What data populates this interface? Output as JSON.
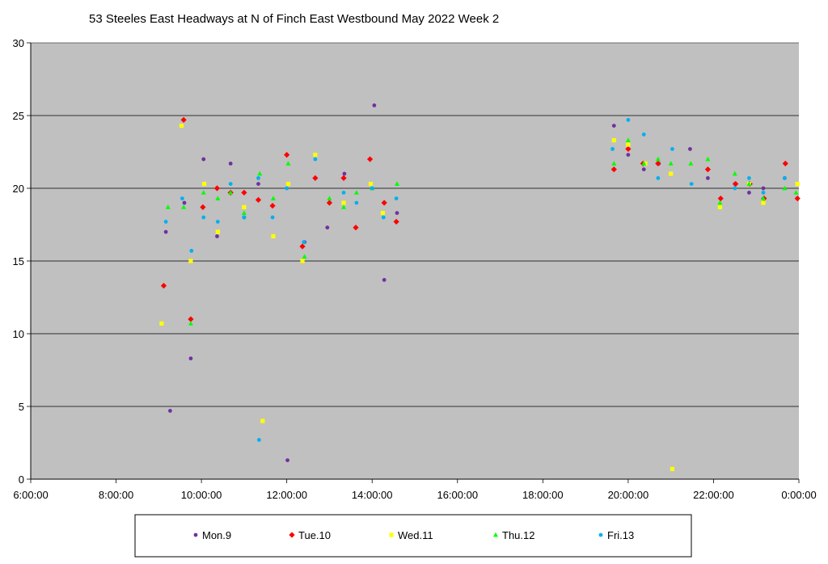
{
  "chart_data": {
    "type": "scatter",
    "title": "53 Steeles East Headways at N of Finch East Westbound May 2022  Week 2",
    "xlabel": "",
    "ylabel": "",
    "x_unit": "time of day",
    "xlim": [
      "6:00:00",
      "0:00:00"
    ],
    "ylim": [
      0,
      30
    ],
    "x_ticks": [
      "6:00:00",
      "8:00:00",
      "10:00:00",
      "12:00:00",
      "14:00:00",
      "16:00:00",
      "18:00:00",
      "20:00:00",
      "22:00:00",
      "0:00:00"
    ],
    "y_ticks": [
      "0",
      "5",
      "10",
      "15",
      "20",
      "25",
      "30"
    ],
    "grid": "horizontal",
    "plot_background": "#c0c0c0",
    "legend_position": "bottom",
    "series": [
      {
        "name": "Mon.9",
        "marker": "circle",
        "color": "#7030a0",
        "points": [
          [
            "9:10:00",
            17.0
          ],
          [
            "9:16:00",
            4.7
          ],
          [
            "9:36:00",
            19.0
          ],
          [
            "9:45:00",
            8.3
          ],
          [
            "10:03:00",
            22.0
          ],
          [
            "10:22:00",
            16.7
          ],
          [
            "10:41:00",
            21.7
          ],
          [
            "11:00:00",
            18.0
          ],
          [
            "11:20:00",
            20.3
          ],
          [
            "12:01:00",
            1.3
          ],
          [
            "12:25:00",
            16.3
          ],
          [
            "12:57:00",
            17.3
          ],
          [
            "13:21:00",
            21.0
          ],
          [
            "14:03:00",
            25.7
          ],
          [
            "14:17:00",
            13.7
          ],
          [
            "14:35:00",
            18.3
          ],
          [
            "19:40:00",
            24.3
          ],
          [
            "20:00:00",
            22.3
          ],
          [
            "20:22:00",
            21.3
          ],
          [
            "20:43:00",
            21.7
          ],
          [
            "21:27:00",
            22.7
          ],
          [
            "21:52:00",
            20.7
          ],
          [
            "22:30:00",
            20.3
          ],
          [
            "22:50:00",
            19.7
          ],
          [
            "23:10:00",
            20.0
          ],
          [
            "23:40:00",
            20.7
          ]
        ]
      },
      {
        "name": "Tue.10",
        "marker": "diamond",
        "color": "#ff0000",
        "points": [
          [
            "9:07:00",
            13.3
          ],
          [
            "9:35:00",
            24.7
          ],
          [
            "9:45:00",
            11.0
          ],
          [
            "10:02:00",
            18.7
          ],
          [
            "10:22:00",
            20.0
          ],
          [
            "10:41:00",
            19.7
          ],
          [
            "11:00:00",
            19.7
          ],
          [
            "11:20:00",
            19.2
          ],
          [
            "11:40:00",
            18.8
          ],
          [
            "12:00:00",
            22.3
          ],
          [
            "12:22:00",
            16.0
          ],
          [
            "12:40:00",
            20.7
          ],
          [
            "13:00:00",
            19.0
          ],
          [
            "13:20:00",
            20.7
          ],
          [
            "13:37:00",
            17.3
          ],
          [
            "13:57:00",
            22.0
          ],
          [
            "14:17:00",
            19.0
          ],
          [
            "14:34:00",
            17.7
          ],
          [
            "19:40:00",
            21.3
          ],
          [
            "20:00:00",
            22.7
          ],
          [
            "20:21:00",
            21.7
          ],
          [
            "20:42:00",
            21.7
          ],
          [
            "21:52:00",
            21.3
          ],
          [
            "22:10:00",
            19.3
          ],
          [
            "22:31:00",
            20.3
          ],
          [
            "22:51:00",
            20.3
          ],
          [
            "23:11:00",
            19.3
          ],
          [
            "23:41:00",
            21.7
          ],
          [
            "23:58:00",
            19.3
          ]
        ]
      },
      {
        "name": "Wed.11",
        "marker": "square",
        "color": "#ffff00",
        "points": [
          [
            "9:04:00",
            10.7
          ],
          [
            "9:32:00",
            24.3
          ],
          [
            "9:45:00",
            15.0
          ],
          [
            "10:04:00",
            20.3
          ],
          [
            "10:23:00",
            17.0
          ],
          [
            "11:00:00",
            18.7
          ],
          [
            "11:26:00",
            4.0
          ],
          [
            "11:41:00",
            16.7
          ],
          [
            "12:02:00",
            20.3
          ],
          [
            "12:22:00",
            15.0
          ],
          [
            "12:40:00",
            22.3
          ],
          [
            "13:20:00",
            19.0
          ],
          [
            "13:58:00",
            20.3
          ],
          [
            "14:15:00",
            18.3
          ],
          [
            "19:40:00",
            23.3
          ],
          [
            "20:00:00",
            23.0
          ],
          [
            "20:24:00",
            21.7
          ],
          [
            "21:00:00",
            21.0
          ],
          [
            "21:02:00",
            0.7
          ],
          [
            "22:09:00",
            18.7
          ],
          [
            "22:50:00",
            20.3
          ],
          [
            "23:10:00",
            19.0
          ],
          [
            "23:58:00",
            20.3
          ]
        ]
      },
      {
        "name": "Thu.12",
        "marker": "triangle",
        "color": "#00ff00",
        "points": [
          [
            "9:13:00",
            18.7
          ],
          [
            "9:35:00",
            18.7
          ],
          [
            "9:45:00",
            10.7
          ],
          [
            "10:03:00",
            19.7
          ],
          [
            "10:23:00",
            19.3
          ],
          [
            "10:41:00",
            19.7
          ],
          [
            "11:00:00",
            18.3
          ],
          [
            "11:22:00",
            21.0
          ],
          [
            "11:41:00",
            19.3
          ],
          [
            "12:02:00",
            21.7
          ],
          [
            "12:25:00",
            15.3
          ],
          [
            "13:00:00",
            19.3
          ],
          [
            "13:20:00",
            18.7
          ],
          [
            "13:38:00",
            19.7
          ],
          [
            "14:00:00",
            20.0
          ],
          [
            "14:35:00",
            20.3
          ],
          [
            "19:40:00",
            21.7
          ],
          [
            "20:00:00",
            23.3
          ],
          [
            "20:22:00",
            21.7
          ],
          [
            "20:42:00",
            22.0
          ],
          [
            "21:00:00",
            21.7
          ],
          [
            "21:28:00",
            21.7
          ],
          [
            "21:52:00",
            22.0
          ],
          [
            "22:09:00",
            19.0
          ],
          [
            "22:30:00",
            21.0
          ],
          [
            "22:50:00",
            20.3
          ],
          [
            "23:10:00",
            19.3
          ],
          [
            "23:40:00",
            20.0
          ],
          [
            "23:56:00",
            19.7
          ]
        ]
      },
      {
        "name": "Fri.13",
        "marker": "circle",
        "color": "#00b0f0",
        "points": [
          [
            "9:10:00",
            17.7
          ],
          [
            "9:33:00",
            19.3
          ],
          [
            "9:46:00",
            15.7
          ],
          [
            "10:03:00",
            18.0
          ],
          [
            "10:23:00",
            17.7
          ],
          [
            "10:41:00",
            20.3
          ],
          [
            "11:00:00",
            18.0
          ],
          [
            "11:20:00",
            20.7
          ],
          [
            "11:21:00",
            2.7
          ],
          [
            "11:40:00",
            18.0
          ],
          [
            "12:00:00",
            20.0
          ],
          [
            "12:24:00",
            16.3
          ],
          [
            "12:40:00",
            22.0
          ],
          [
            "13:20:00",
            19.7
          ],
          [
            "13:38:00",
            19.0
          ],
          [
            "14:00:00",
            20.0
          ],
          [
            "14:16:00",
            18.0
          ],
          [
            "14:34:00",
            19.3
          ],
          [
            "19:38:00",
            22.7
          ],
          [
            "20:00:00",
            24.7
          ],
          [
            "20:22:00",
            23.7
          ],
          [
            "20:42:00",
            20.7
          ],
          [
            "21:02:00",
            22.7
          ],
          [
            "21:29:00",
            20.3
          ],
          [
            "22:30:00",
            20.0
          ],
          [
            "22:50:00",
            20.7
          ],
          [
            "23:10:00",
            19.7
          ],
          [
            "23:40:00",
            20.7
          ]
        ]
      }
    ]
  }
}
